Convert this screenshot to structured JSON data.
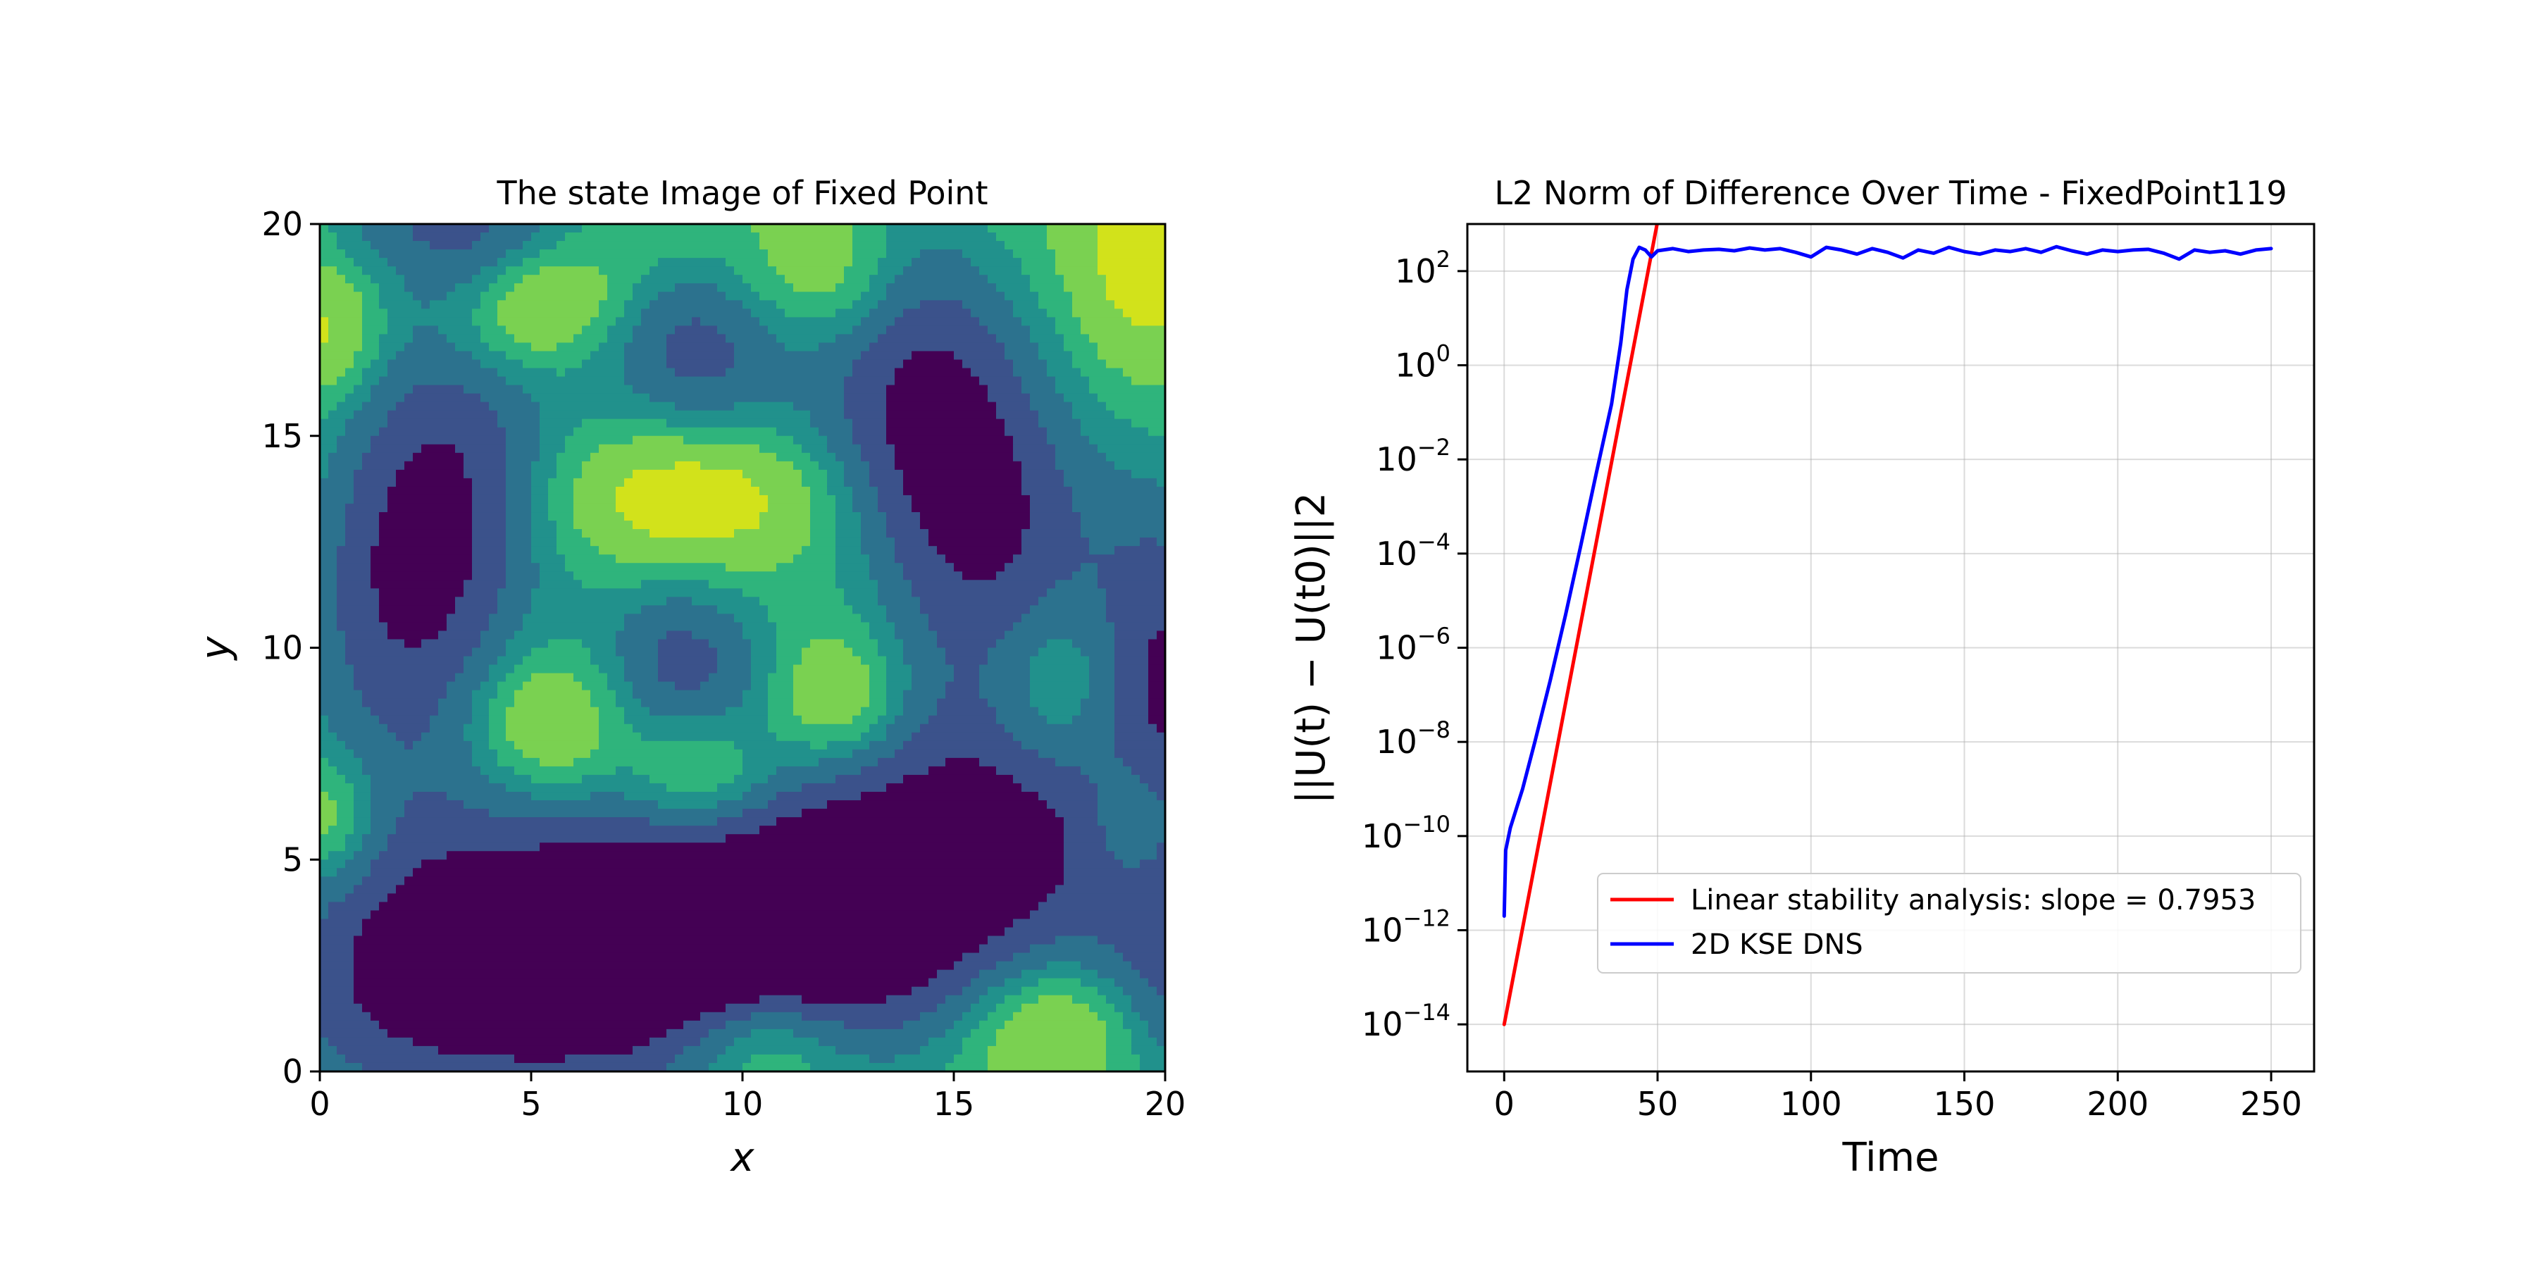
{
  "chart_data": [
    {
      "type": "heatmap",
      "title": "The state Image of Fixed Point",
      "xlabel": "x",
      "ylabel": "y",
      "xlim": [
        0,
        20
      ],
      "ylim": [
        0,
        20
      ],
      "xticks": [
        "0",
        "5",
        "10",
        "15",
        "20"
      ],
      "yticks": [
        "0",
        "5",
        "10",
        "15",
        "20"
      ],
      "colormap": "viridis",
      "levels_colors": [
        "#440154",
        "#3b528b",
        "#2c728e",
        "#21918c",
        "#2fb47c",
        "#7ad151",
        "#d2e21b"
      ],
      "features": [
        {
          "kind": "low",
          "x": 2.5,
          "y": 12.5,
          "sx": 2.2,
          "sy": 4.5,
          "rot": -10,
          "depth": 1.15
        },
        {
          "kind": "low",
          "x": 15.0,
          "y": 14.5,
          "sx": 2.3,
          "sy": 4.8,
          "rot": 20,
          "depth": 1.2
        },
        {
          "kind": "low",
          "x": 4.5,
          "y": 2.8,
          "sx": 4.8,
          "sy": 2.6,
          "rot": 15,
          "depth": 1.25
        },
        {
          "kind": "low",
          "x": 13.5,
          "y": 4.0,
          "sx": 5.0,
          "sy": 2.7,
          "rot": 25,
          "depth": 1.25
        },
        {
          "kind": "low",
          "x": 8.8,
          "y": 17.0,
          "sx": 1.6,
          "sy": 1.6,
          "rot": 0,
          "depth": 0.75
        },
        {
          "kind": "low",
          "x": 8.6,
          "y": 9.8,
          "sx": 1.6,
          "sy": 1.6,
          "rot": 0,
          "depth": 0.75
        },
        {
          "kind": "low",
          "x": 20.3,
          "y": 10.0,
          "sx": 1.4,
          "sy": 3.5,
          "rot": 0,
          "depth": 0.7
        },
        {
          "kind": "low",
          "x": 20.3,
          "y": 2.0,
          "sx": 1.4,
          "sy": 2.5,
          "rot": 0,
          "depth": 0.6
        },
        {
          "kind": "low",
          "x": 3.0,
          "y": 20.3,
          "sx": 2.5,
          "sy": 1.2,
          "rot": 0,
          "depth": 0.6
        },
        {
          "kind": "high",
          "x": 8.8,
          "y": 13.5,
          "sx": 2.0,
          "sy": 1.0,
          "rot": 0,
          "depth": 0.6
        },
        {
          "kind": "high",
          "x": 5.2,
          "y": 18.0,
          "sx": 1.3,
          "sy": 0.9,
          "rot": 20,
          "depth": 0.55
        },
        {
          "kind": "high",
          "x": 12.0,
          "y": 19.0,
          "sx": 1.3,
          "sy": 1.3,
          "rot": -20,
          "depth": 0.55
        },
        {
          "kind": "high",
          "x": 5.4,
          "y": 8.2,
          "sx": 1.2,
          "sy": 1.1,
          "rot": 0,
          "depth": 0.55
        },
        {
          "kind": "high",
          "x": 12.2,
          "y": 8.8,
          "sx": 1.0,
          "sy": 1.0,
          "rot": 0,
          "depth": 0.5
        },
        {
          "kind": "high",
          "x": 9.0,
          "y": 7.0,
          "sx": 1.2,
          "sy": 1.0,
          "rot": 0,
          "depth": 0.5
        },
        {
          "kind": "high",
          "x": 17.5,
          "y": 9.0,
          "sx": 1.2,
          "sy": 1.6,
          "rot": 0,
          "depth": 0.55
        },
        {
          "kind": "high",
          "x": 10.5,
          "y": 0.6,
          "sx": 1.4,
          "sy": 1.0,
          "rot": 0,
          "depth": 0.55
        },
        {
          "kind": "high",
          "x": 17.3,
          "y": 1.0,
          "sx": 1.3,
          "sy": 1.0,
          "rot": 0,
          "depth": 0.5
        },
        {
          "kind": "high",
          "x": 0.2,
          "y": 17.5,
          "sx": 0.8,
          "sy": 1.0,
          "rot": 0,
          "depth": 0.45
        },
        {
          "kind": "high",
          "x": 0.2,
          "y": 6.0,
          "sx": 0.8,
          "sy": 1.0,
          "rot": 0,
          "depth": 0.45
        },
        {
          "kind": "high",
          "x": 19.5,
          "y": 19.0,
          "sx": 1.0,
          "sy": 1.5,
          "rot": 0,
          "depth": 0.5
        },
        {
          "kind": "high",
          "x": 19.3,
          "y": 6.0,
          "sx": 0.9,
          "sy": 1.3,
          "rot": 0,
          "depth": 0.45
        }
      ]
    },
    {
      "type": "line",
      "title": "L2 Norm of Difference Over Time - FixedPoint119",
      "xlabel": "Time",
      "ylabel": "||U(t) − U(t0)||2",
      "yscale": "log",
      "xlim": [
        -12,
        264
      ],
      "ylim": [
        1e-15,
        1000
      ],
      "xticks": [
        0,
        50,
        100,
        150,
        200,
        250
      ],
      "yticks": [
        1e-14,
        1e-12,
        1e-10,
        1e-08,
        1e-06,
        0.0001,
        0.01,
        1,
        100
      ],
      "grid": true,
      "legend_position": "lower-right",
      "series": [
        {
          "name": "Linear stability analysis: slope = 0.7953",
          "color": "#ff0000",
          "x": [
            0,
            51
          ],
          "y": [
            1e-14,
            2500
          ]
        },
        {
          "name": "2D KSE DNS",
          "color": "#0000ff",
          "x": [
            0,
            0.5,
            2,
            6,
            10,
            15,
            20,
            25,
            30,
            35,
            38,
            40,
            42,
            44,
            46,
            48,
            50,
            55,
            60,
            65,
            70,
            75,
            80,
            85,
            90,
            95,
            100,
            105,
            110,
            115,
            120,
            125,
            130,
            135,
            140,
            145,
            150,
            155,
            160,
            165,
            170,
            175,
            180,
            185,
            190,
            195,
            200,
            205,
            210,
            215,
            220,
            225,
            230,
            235,
            240,
            245,
            250
          ],
          "y": [
            2e-12,
            5e-11,
            1.5e-10,
            1e-09,
            1e-08,
            2e-07,
            5e-06,
            0.00015,
            0.005,
            0.15,
            3,
            40,
            180,
            320,
            280,
            200,
            270,
            300,
            260,
            280,
            290,
            270,
            310,
            280,
            300,
            250,
            200,
            320,
            280,
            230,
            300,
            250,
            190,
            280,
            240,
            320,
            260,
            230,
            280,
            260,
            300,
            250,
            330,
            270,
            230,
            280,
            260,
            280,
            290,
            240,
            180,
            280,
            250,
            270,
            230,
            280,
            300
          ]
        }
      ]
    }
  ]
}
